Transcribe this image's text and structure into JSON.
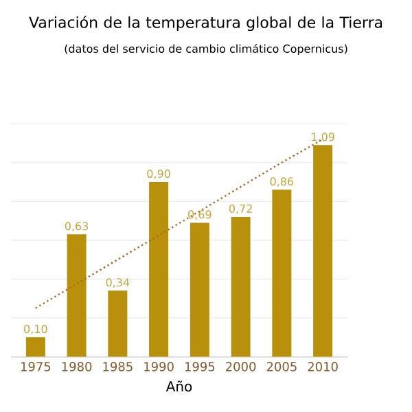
{
  "chart_data": {
    "type": "bar",
    "title": "Variación de la temperatura global de la Tierra",
    "subtitle": "(datos del servicio de cambio climático Copernicus)",
    "xlabel": "Año",
    "categories": [
      "1975",
      "1980",
      "1985",
      "1990",
      "1995",
      "2000",
      "2005",
      "2010"
    ],
    "series": [
      {
        "color": "#b8900c",
        "values": [
          0.1,
          0.63,
          0.34,
          0.9,
          0.69,
          0.72,
          0.86,
          1.09
        ],
        "value_labels": [
          "0,10",
          "0,63",
          "0,34",
          "0,90",
          "0,69",
          "0,72",
          "0,86",
          "1,09"
        ]
      },
      {
        "type": "line",
        "color": "#b5651d",
        "line_style": "dotted",
        "marker": "none",
        "values": [
          0.25,
          0.375,
          0.5,
          0.625,
          0.75,
          0.875,
          1.0,
          1.12
        ]
      }
    ],
    "grid": "y",
    "tick_labels": "x"
  }
}
